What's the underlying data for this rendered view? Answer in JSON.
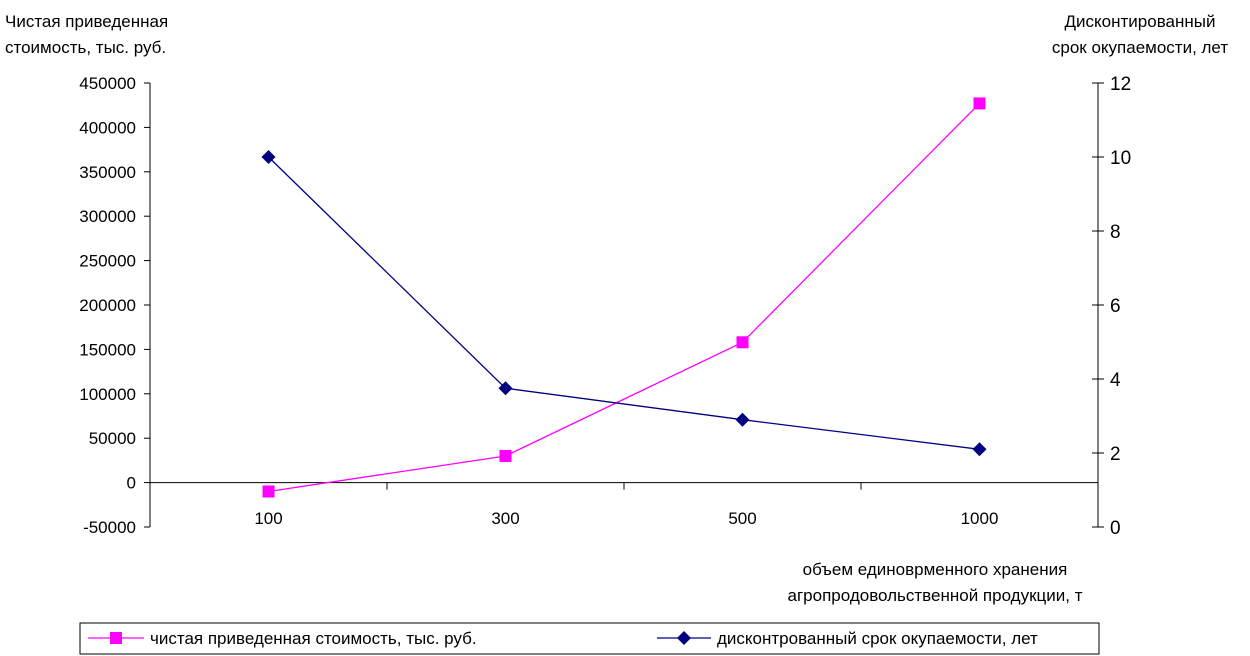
{
  "chart_data": {
    "type": "line",
    "categories": [
      "100",
      "300",
      "500",
      "1000"
    ],
    "series": [
      {
        "name": "чистая приведенная стоимость, тыс. руб.",
        "axis": "left",
        "color": "#ff00ff",
        "marker": "square",
        "values": [
          -10000,
          30000,
          158000,
          427000
        ]
      },
      {
        "name": "дисконтрованный срок окупаемости, лет",
        "axis": "right",
        "color": "#000080",
        "marker": "diamond",
        "values": [
          10.0,
          3.75,
          2.9,
          2.1
        ]
      }
    ],
    "y_left": {
      "label_lines": [
        "Чистая приведенная",
        "стоимость, тыс. руб."
      ],
      "ylim": [
        -50000,
        450000
      ],
      "ticks": [
        -50000,
        0,
        50000,
        100000,
        150000,
        200000,
        250000,
        300000,
        350000,
        400000,
        450000
      ]
    },
    "y_right": {
      "label_lines": [
        "Дисконтированный",
        "срок окупаемости, лет"
      ],
      "ylim": [
        0,
        12
      ],
      "ticks": [
        0,
        2,
        4,
        6,
        8,
        10,
        12
      ]
    },
    "x_axis": {
      "label_lines": [
        "объем единоврменного  хранения",
        "агропродовольственной продукции, т"
      ]
    },
    "grid": false,
    "legend_position": "bottom"
  }
}
